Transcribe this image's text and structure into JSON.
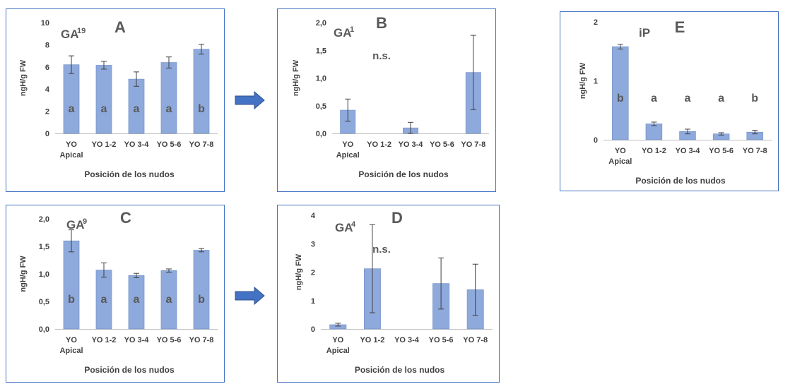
{
  "colors": {
    "bar": "#8EA9DB",
    "bar_stroke": "#6F8CC4",
    "frame": "#4472C4",
    "text": "#595959",
    "axis": "#BFBFBF"
  },
  "arrow_icon": "right-arrow-icon",
  "chart_data": [
    {
      "id": "A",
      "type": "bar",
      "panel_letter": "A",
      "hormone": {
        "base": "GA",
        "sup": "19"
      },
      "ylabel": "ngH/g FW",
      "xlabel": "Posición de los nudos",
      "ylim": [
        0,
        10
      ],
      "yticks": [
        "0",
        "2",
        "4",
        "6",
        "8",
        "10"
      ],
      "ytick_values": [
        0,
        2,
        4,
        6,
        8,
        10
      ],
      "categories": [
        [
          "YO",
          "Apical"
        ],
        [
          "YO 1-2"
        ],
        [
          "YO 3-4"
        ],
        [
          "YO 5-6"
        ],
        [
          "YO 7-8"
        ]
      ],
      "values": [
        6.2,
        6.15,
        4.9,
        6.4,
        7.6
      ],
      "errors": [
        0.8,
        0.35,
        0.65,
        0.5,
        0.45
      ],
      "letters": [
        "a",
        "a",
        "a",
        "a",
        "b"
      ],
      "letter_y": 2.3,
      "note": ""
    },
    {
      "id": "B",
      "type": "bar",
      "panel_letter": "B",
      "hormone": {
        "base": "GA",
        "sup": "1"
      },
      "ylabel": "ngH/g FW",
      "xlabel": "Posición de los nudos",
      "ylim": [
        0,
        2
      ],
      "yticks": [
        "0,0",
        "0,5",
        "1,0",
        "1,5",
        "2,0"
      ],
      "ytick_values": [
        0,
        0.5,
        1.0,
        1.5,
        2.0
      ],
      "categories": [
        [
          "YO",
          "Apical"
        ],
        [
          "YO 1-2"
        ],
        [
          "YO 3-4"
        ],
        [
          "YO 5-6"
        ],
        [
          "YO 7-8"
        ]
      ],
      "values": [
        0.42,
        0,
        0.1,
        0,
        1.1
      ],
      "errors": [
        0.2,
        0,
        0.1,
        0,
        0.67
      ],
      "letters": [
        "",
        "",
        "",
        "",
        ""
      ],
      "letter_y": 0,
      "note": "n.s."
    },
    {
      "id": "C",
      "type": "bar",
      "panel_letter": "C",
      "hormone": {
        "base": "GA",
        "sup": "9"
      },
      "ylabel": "ngH/g FW",
      "xlabel": "Posición de los nudos",
      "ylim": [
        0,
        2
      ],
      "yticks": [
        "0,0",
        "0,5",
        "1,0",
        "1,5",
        "2,0"
      ],
      "ytick_values": [
        0,
        0.5,
        1.0,
        1.5,
        2.0
      ],
      "categories": [
        [
          "YO",
          "Apical"
        ],
        [
          "YO 1-2"
        ],
        [
          "YO 3-4"
        ],
        [
          "YO 5-6"
        ],
        [
          "YO 7-8"
        ]
      ],
      "values": [
        1.6,
        1.07,
        0.97,
        1.06,
        1.43
      ],
      "errors": [
        0.2,
        0.13,
        0.04,
        0.03,
        0.03
      ],
      "letters": [
        "b",
        "a",
        "a",
        "a",
        "b"
      ],
      "letter_y": 0.55,
      "note": ""
    },
    {
      "id": "D",
      "type": "bar",
      "panel_letter": "D",
      "hormone": {
        "base": "GA",
        "sup": "4"
      },
      "ylabel": "ngH/g FW",
      "xlabel": "Posición de los nudos",
      "ylim": [
        0,
        4
      ],
      "yticks": [
        "0",
        "1",
        "2",
        "3",
        "4"
      ],
      "ytick_values": [
        0,
        1,
        2,
        3,
        4
      ],
      "categories": [
        [
          "YO",
          "Apical"
        ],
        [
          "YO 1-2"
        ],
        [
          "YO 3-4"
        ],
        [
          "YO 5-6"
        ],
        [
          "YO 7-8"
        ]
      ],
      "values": [
        0.15,
        2.12,
        0,
        1.6,
        1.38
      ],
      "errors": [
        0.05,
        1.55,
        0,
        0.9,
        0.9
      ],
      "letters": [
        "",
        "",
        "",
        "",
        ""
      ],
      "letter_y": 0,
      "note": "n.s."
    },
    {
      "id": "E",
      "type": "bar",
      "panel_letter": "E",
      "hormone": {
        "base": "iP",
        "sup": ""
      },
      "ylabel": "ngH/g FW",
      "xlabel": "Posición de los nudos",
      "ylim": [
        0,
        2
      ],
      "yticks": [
        "0",
        "1",
        "2"
      ],
      "ytick_values": [
        0,
        1,
        2
      ],
      "categories": [
        [
          "YO",
          "Apical"
        ],
        [
          "YO 1-2"
        ],
        [
          "YO 3-4"
        ],
        [
          "YO 5-6"
        ],
        [
          "YO 7-8"
        ]
      ],
      "values": [
        1.58,
        0.27,
        0.14,
        0.1,
        0.13
      ],
      "errors": [
        0.04,
        0.03,
        0.04,
        0.02,
        0.03
      ],
      "letters": [
        "b",
        "a",
        "a",
        "a",
        "b"
      ],
      "letter_y": 0.72,
      "note": ""
    }
  ]
}
